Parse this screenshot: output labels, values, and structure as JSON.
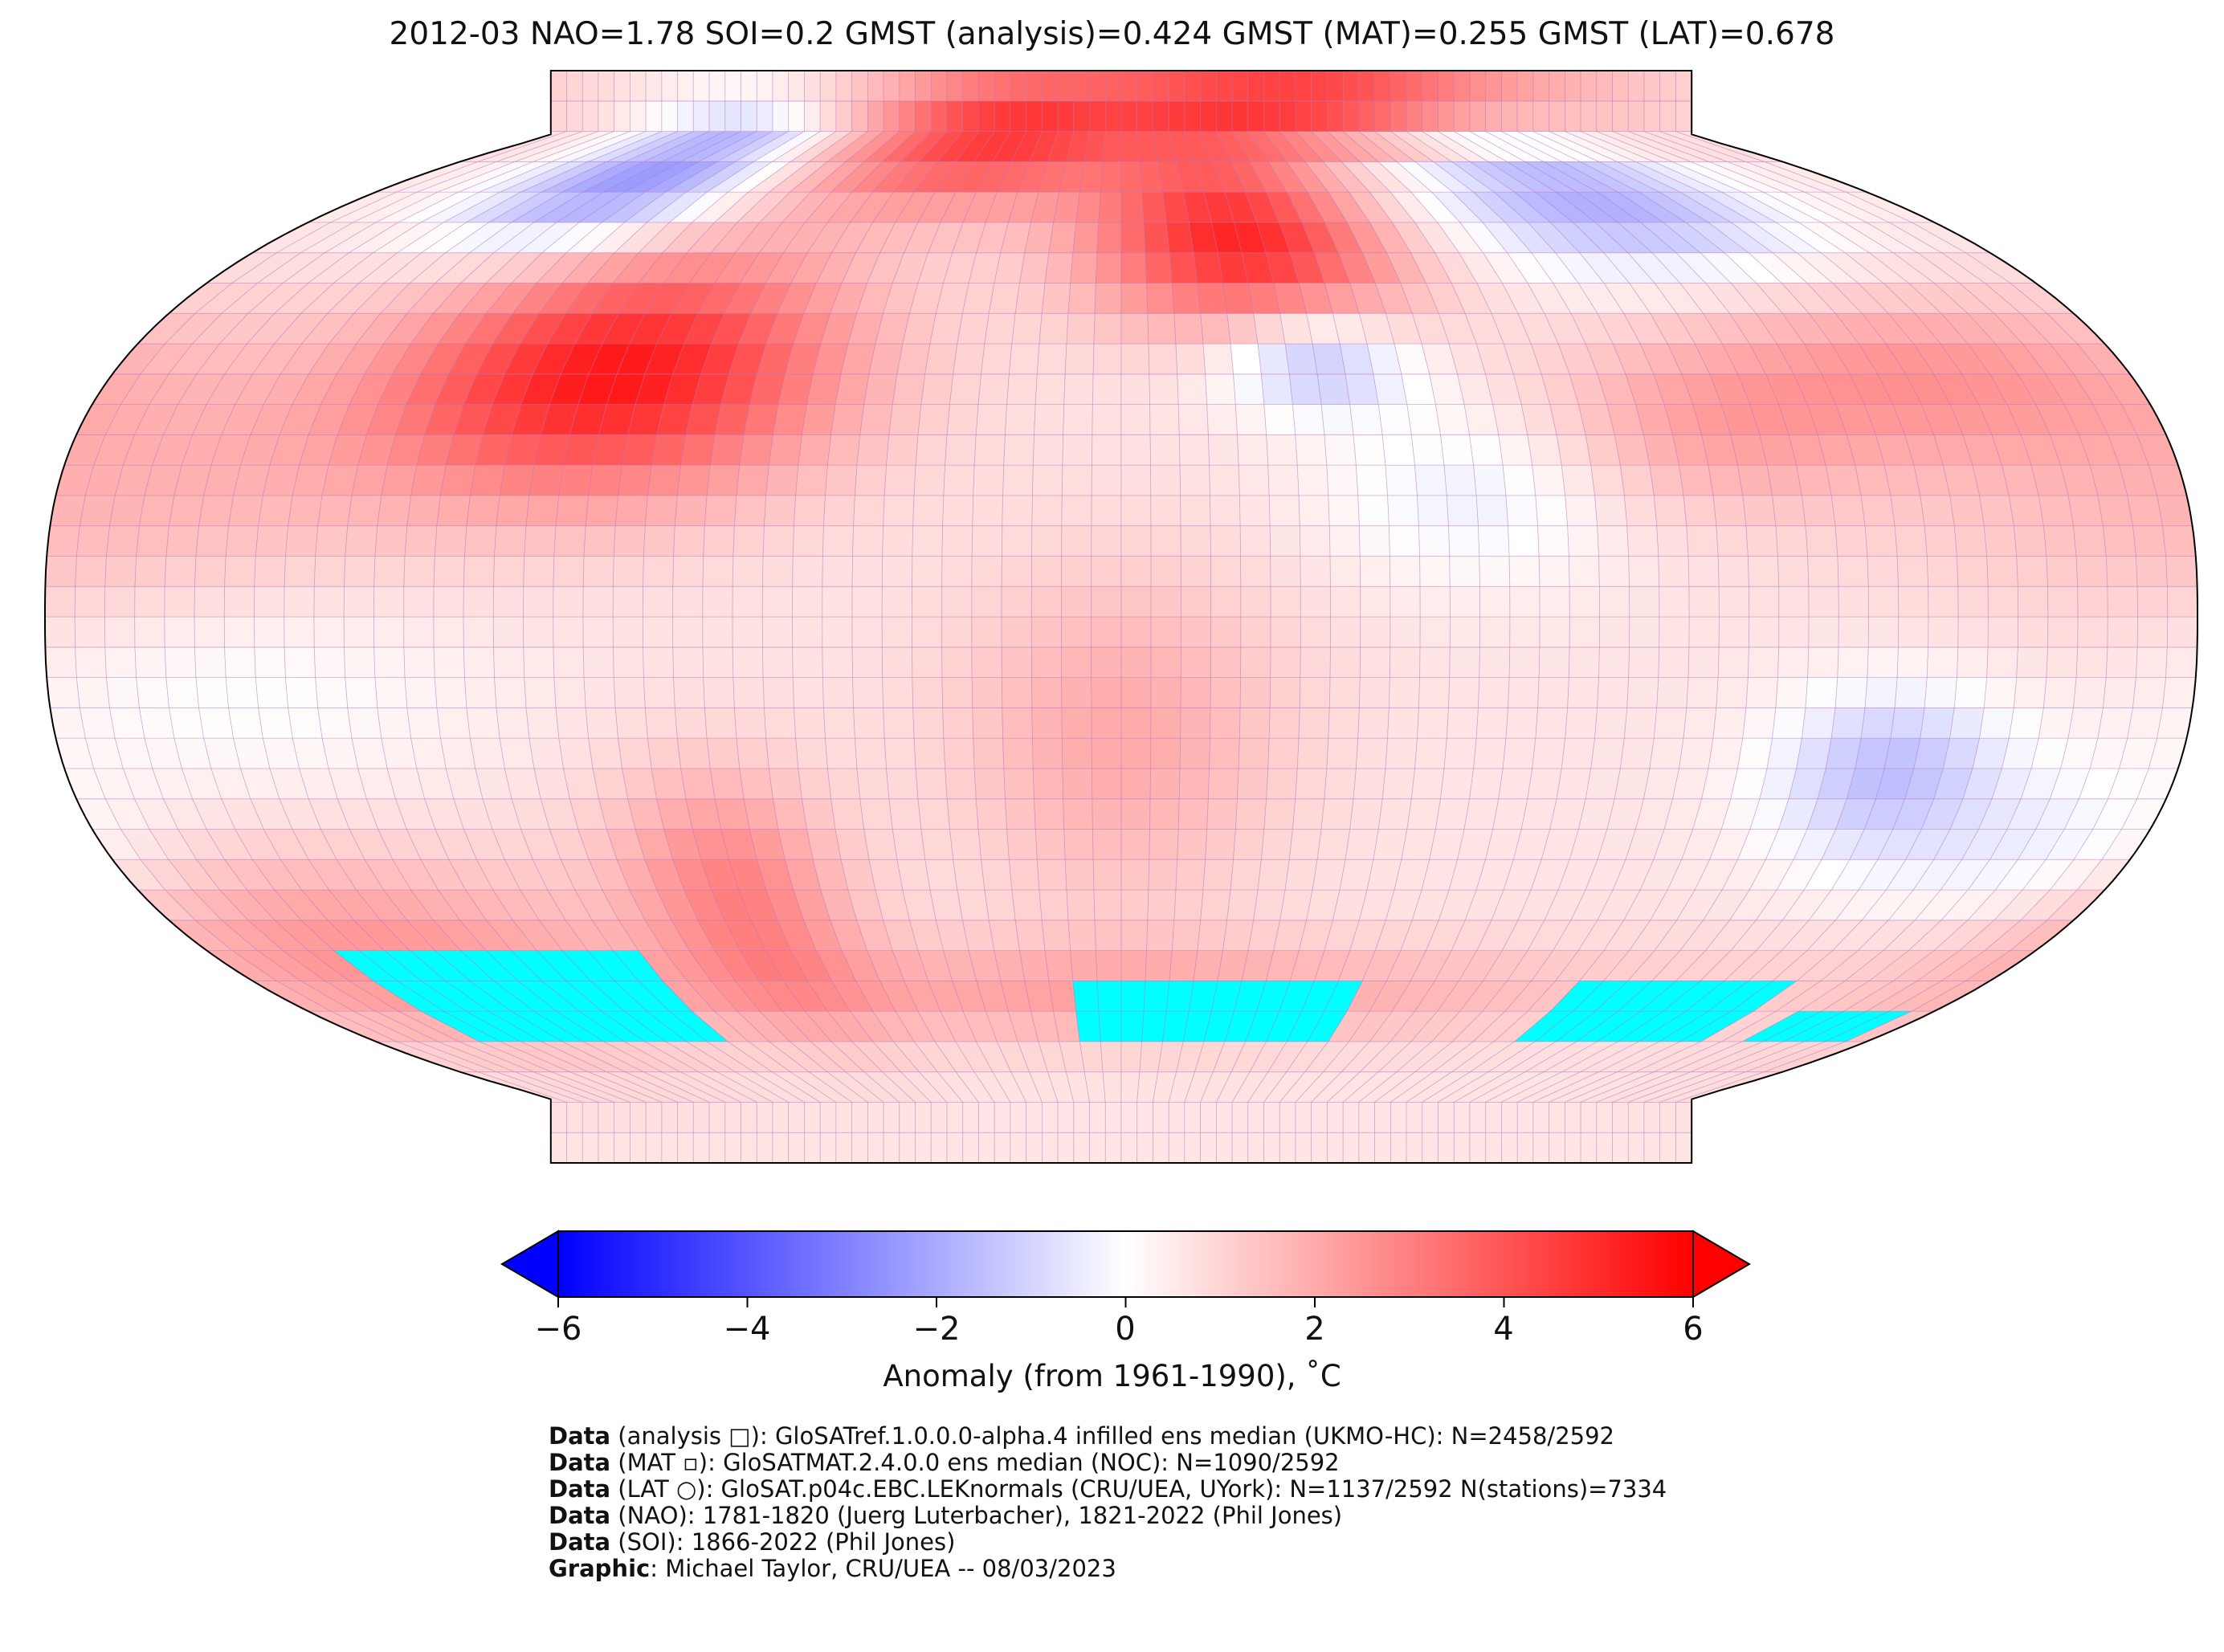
{
  "title": "2012-03 NAO=1.78 SOI=0.2 GMST (analysis)=0.424 GMST (MAT)=0.255 GMST (LAT)=0.678",
  "colorbar": {
    "label": "Anomaly (from 1961-1990), ˚C",
    "ticks": [
      "−6",
      "−4",
      "−2",
      "0",
      "2",
      "4",
      "6"
    ],
    "vmin": -6,
    "vmax": 6,
    "colormap": [
      "#0000ff",
      "#ffffff",
      "#ff0000"
    ],
    "extend": "both"
  },
  "map": {
    "projection": "Robinson",
    "missing_color": "#00ffff",
    "grid_color": "#b070c0"
  },
  "credits": [
    {
      "key": "Data",
      "text": " (analysis □): GloSATref.1.0.0.0-alpha.4 infilled ens median (UKMO-HC): N=2458/2592"
    },
    {
      "key": "Data",
      "text": " (MAT ▫): GloSATMAT.2.4.0.0 ens median (NOC): N=1090/2592"
    },
    {
      "key": "Data",
      "text": " (LAT ○): GloSAT.p04c.EBC.LEKnormals (CRU/UEA, UYork): N=1137/2592 N(stations)=7334"
    },
    {
      "key": "Data",
      "text": " (NAO): 1781-1820 (Juerg Luterbacher), 1821-2022 (Phil Jones)"
    },
    {
      "key": "Data",
      "text": " (SOI): 1866-2022 (Phil Jones)"
    },
    {
      "key": "Graphic",
      "text": ": Michael Taylor, CRU/UEA -- 08/03/2023"
    }
  ]
}
